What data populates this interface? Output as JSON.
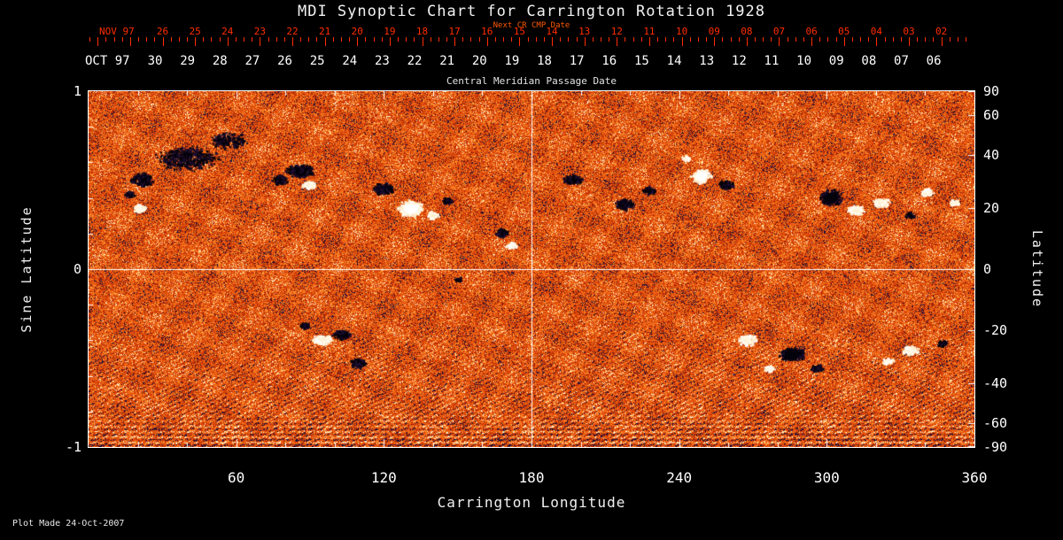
{
  "title": "MDI Synoptic Chart for Carrington Rotation 1928",
  "top_axes": {
    "next_cr_label": "Next CR CMP Date",
    "nov": {
      "month": "NOV 97",
      "days": [
        "26",
        "25",
        "24",
        "23",
        "22",
        "21",
        "20",
        "19",
        "18",
        "17",
        "16",
        "15",
        "14",
        "13",
        "12",
        "11",
        "10",
        "09",
        "08",
        "07",
        "06",
        "05",
        "04",
        "03",
        "02"
      ]
    },
    "oct": {
      "month": "OCT 97",
      "days": [
        "30",
        "29",
        "28",
        "27",
        "26",
        "25",
        "24",
        "23",
        "22",
        "21",
        "20",
        "19",
        "18",
        "17",
        "16",
        "15",
        "14",
        "13",
        "12",
        "11",
        "10",
        "09",
        "08",
        "07",
        "06"
      ]
    },
    "cmp_label": "Central Meridian Passage Date"
  },
  "axes": {
    "left": {
      "label": "Sine Latitude"
    },
    "right": {
      "label": "Latitude"
    },
    "bottom": {
      "label": "Carrington Longitude"
    }
  },
  "footer": {
    "plot_made": "Plot Made 24-Oct-2007"
  },
  "colors": {
    "background": "#000000",
    "next_cr_axis": "#ff2d00",
    "next_cr_header": "#ff5a00",
    "map_base_orange": "#de4a0a",
    "negative_polarity": "#0b0518",
    "positive_polarity": "#ffffff"
  },
  "chart_data": {
    "type": "heatmap",
    "title": "MDI Synoptic Chart for Carrington Rotation 1928",
    "xlabel": "Carrington Longitude",
    "ylabel_left": "Sine Latitude",
    "ylabel_right": "Latitude",
    "x_range": [
      0,
      360
    ],
    "y_range_sine_latitude": [
      -1,
      1
    ],
    "x_ticks_major": [
      60,
      120,
      180,
      240,
      300,
      360
    ],
    "x_tick_minor_step": 20,
    "left_ticks": [
      1,
      0,
      -1
    ],
    "right_ticks_deg": [
      90,
      60,
      40,
      20,
      0,
      -20,
      -40,
      -60,
      -90
    ],
    "crosshair": {
      "longitude": 180,
      "sine_latitude": 0
    },
    "colormap": "solar magnetogram: orange-red noise base, dark = negative polarity, white = positive polarity",
    "annotations": [
      "diagonal streak texture in southern hemisphere",
      "horizontal banding near south polar edge"
    ],
    "active_regions": [
      {
        "lon": 40,
        "slat": 0.62,
        "pol": "negative",
        "rlon": 14,
        "rslat": 0.075,
        "intensity": "sparse"
      },
      {
        "lon": 57,
        "slat": 0.72,
        "pol": "negative",
        "rlon": 9,
        "rslat": 0.05,
        "intensity": "sparse"
      },
      {
        "lon": 22,
        "slat": 0.5,
        "pol": "negative",
        "rlon": 5,
        "rslat": 0.04,
        "intensity": "normal"
      },
      {
        "lon": 21,
        "slat": 0.34,
        "pol": "positive",
        "rlon": 3,
        "rslat": 0.025,
        "intensity": "normal"
      },
      {
        "lon": 17,
        "slat": 0.42,
        "pol": "negative",
        "rlon": 2.5,
        "rslat": 0.02,
        "intensity": "normal"
      },
      {
        "lon": 86,
        "slat": 0.55,
        "pol": "negative",
        "rlon": 6.5,
        "rslat": 0.04,
        "intensity": "normal"
      },
      {
        "lon": 90,
        "slat": 0.47,
        "pol": "positive",
        "rlon": 3.5,
        "rslat": 0.025,
        "intensity": "normal"
      },
      {
        "lon": 78,
        "slat": 0.5,
        "pol": "negative",
        "rlon": 3.5,
        "rslat": 0.03,
        "intensity": "normal"
      },
      {
        "lon": 120,
        "slat": 0.45,
        "pol": "negative",
        "rlon": 5,
        "rslat": 0.035,
        "intensity": "normal"
      },
      {
        "lon": 131,
        "slat": 0.34,
        "pol": "positive",
        "rlon": 6,
        "rslat": 0.05,
        "intensity": "strong"
      },
      {
        "lon": 140,
        "slat": 0.3,
        "pol": "positive",
        "rlon": 3,
        "rslat": 0.025,
        "intensity": "normal"
      },
      {
        "lon": 146,
        "slat": 0.38,
        "pol": "negative",
        "rlon": 2.5,
        "rslat": 0.02,
        "intensity": "normal"
      },
      {
        "lon": 168,
        "slat": 0.2,
        "pol": "negative",
        "rlon": 3,
        "rslat": 0.03,
        "intensity": "normal"
      },
      {
        "lon": 172,
        "slat": 0.13,
        "pol": "positive",
        "rlon": 2.5,
        "rslat": 0.02,
        "intensity": "normal"
      },
      {
        "lon": 197,
        "slat": 0.5,
        "pol": "negative",
        "rlon": 4.5,
        "rslat": 0.03,
        "intensity": "normal"
      },
      {
        "lon": 218,
        "slat": 0.36,
        "pol": "negative",
        "rlon": 4.5,
        "rslat": 0.035,
        "intensity": "normal"
      },
      {
        "lon": 228,
        "slat": 0.44,
        "pol": "negative",
        "rlon": 3,
        "rslat": 0.025,
        "intensity": "normal"
      },
      {
        "lon": 249,
        "slat": 0.52,
        "pol": "positive",
        "rlon": 4.5,
        "rslat": 0.045,
        "intensity": "strong"
      },
      {
        "lon": 259,
        "slat": 0.47,
        "pol": "negative",
        "rlon": 3.5,
        "rslat": 0.03,
        "intensity": "normal"
      },
      {
        "lon": 243,
        "slat": 0.62,
        "pol": "positive",
        "rlon": 2.5,
        "rslat": 0.02,
        "intensity": "normal"
      },
      {
        "lon": 302,
        "slat": 0.4,
        "pol": "negative",
        "rlon": 5,
        "rslat": 0.05,
        "intensity": "strong"
      },
      {
        "lon": 312,
        "slat": 0.33,
        "pol": "positive",
        "rlon": 4,
        "rslat": 0.03,
        "intensity": "normal"
      },
      {
        "lon": 322,
        "slat": 0.37,
        "pol": "positive",
        "rlon": 4,
        "rslat": 0.03,
        "intensity": "normal"
      },
      {
        "lon": 334,
        "slat": 0.3,
        "pol": "negative",
        "rlon": 2.5,
        "rslat": 0.02,
        "intensity": "normal"
      },
      {
        "lon": 341,
        "slat": 0.43,
        "pol": "positive",
        "rlon": 3,
        "rslat": 0.025,
        "intensity": "normal"
      },
      {
        "lon": 352,
        "slat": 0.37,
        "pol": "positive",
        "rlon": 2.5,
        "rslat": 0.02,
        "intensity": "normal"
      },
      {
        "lon": 95,
        "slat": -0.4,
        "pol": "positive",
        "rlon": 5,
        "rslat": 0.03,
        "intensity": "normal"
      },
      {
        "lon": 103,
        "slat": -0.37,
        "pol": "negative",
        "rlon": 4,
        "rslat": 0.03,
        "intensity": "normal"
      },
      {
        "lon": 110,
        "slat": -0.53,
        "pol": "negative",
        "rlon": 3.5,
        "rslat": 0.035,
        "intensity": "normal"
      },
      {
        "lon": 88,
        "slat": -0.32,
        "pol": "negative",
        "rlon": 2.5,
        "rslat": 0.02,
        "intensity": "normal"
      },
      {
        "lon": 150,
        "slat": -0.06,
        "pol": "negative",
        "rlon": 2,
        "rslat": 0.015,
        "intensity": "normal"
      },
      {
        "lon": 268,
        "slat": -0.4,
        "pol": "positive",
        "rlon": 4.5,
        "rslat": 0.035,
        "intensity": "normal"
      },
      {
        "lon": 286,
        "slat": -0.48,
        "pol": "negative",
        "rlon": 6,
        "rslat": 0.045,
        "intensity": "strong"
      },
      {
        "lon": 296,
        "slat": -0.56,
        "pol": "negative",
        "rlon": 3,
        "rslat": 0.025,
        "intensity": "normal"
      },
      {
        "lon": 277,
        "slat": -0.56,
        "pol": "positive",
        "rlon": 2.5,
        "rslat": 0.02,
        "intensity": "normal"
      },
      {
        "lon": 334,
        "slat": -0.46,
        "pol": "positive",
        "rlon": 4,
        "rslat": 0.03,
        "intensity": "normal"
      },
      {
        "lon": 347,
        "slat": -0.42,
        "pol": "negative",
        "rlon": 2.5,
        "rslat": 0.02,
        "intensity": "normal"
      },
      {
        "lon": 325,
        "slat": -0.52,
        "pol": "positive",
        "rlon": 2.5,
        "rslat": 0.02,
        "intensity": "normal"
      }
    ]
  }
}
